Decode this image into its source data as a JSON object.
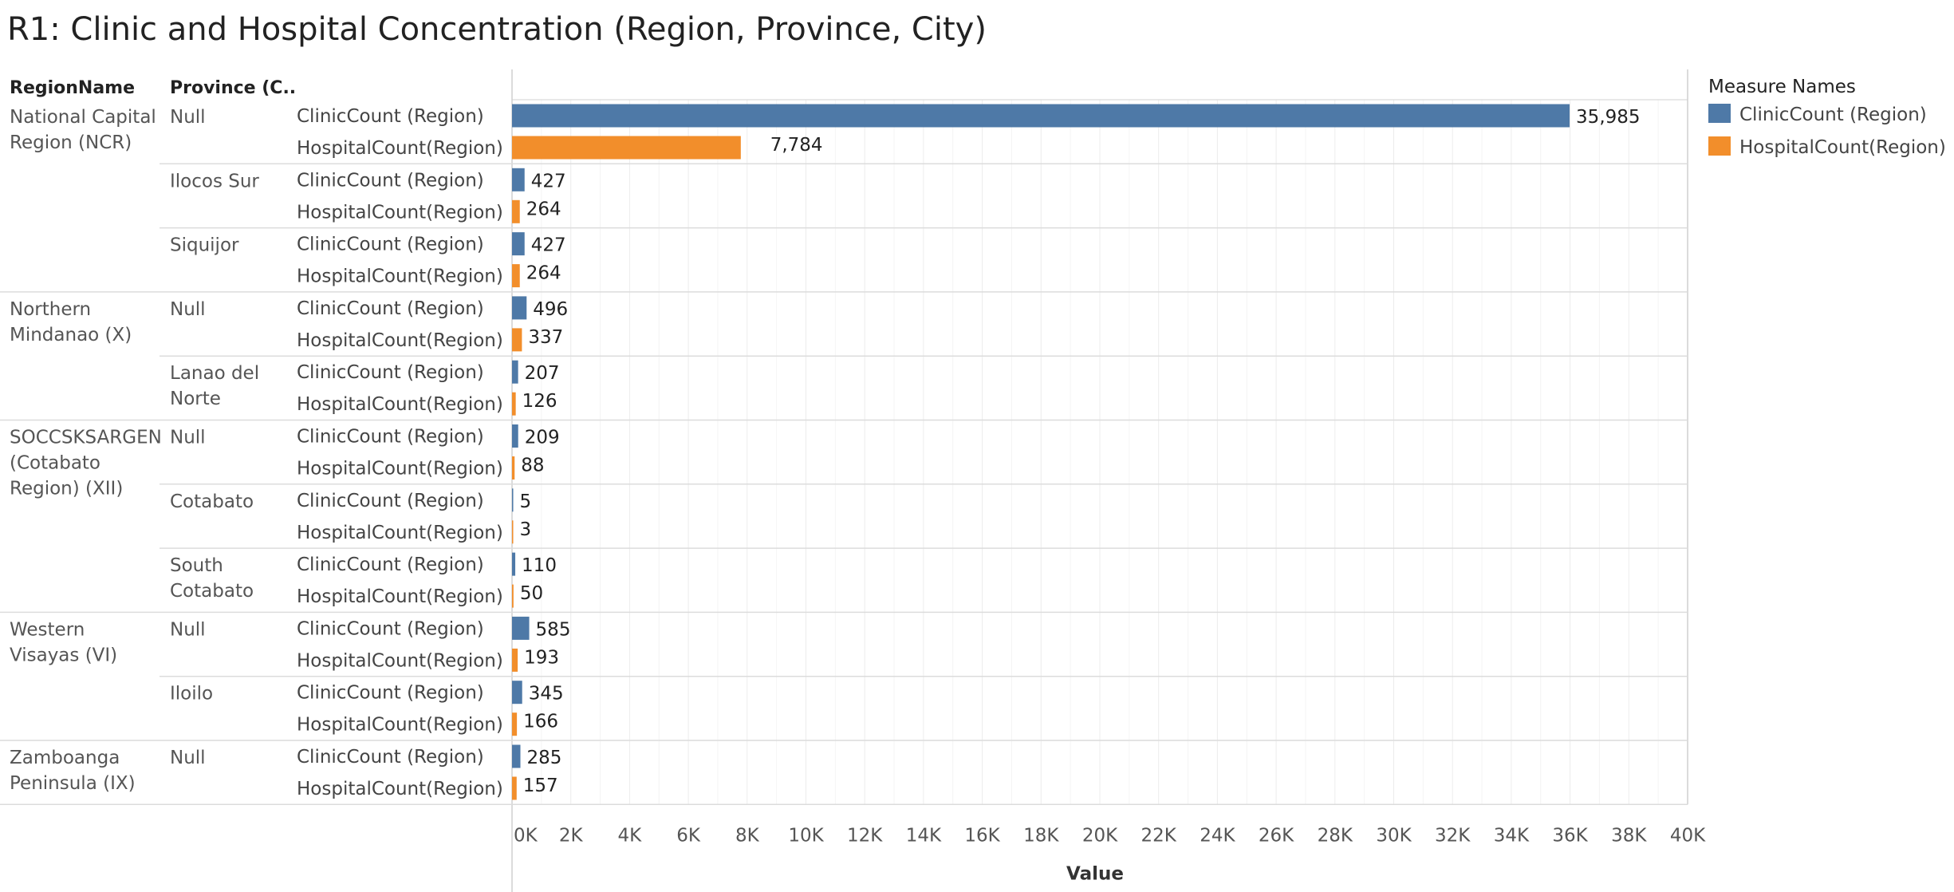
{
  "title": "R1: Clinic and Hospital Concentration (Region, Province, City)",
  "colors": {
    "clinic": "#4e79a7",
    "hospital": "#f28e2b"
  },
  "chart_data": {
    "type": "bar",
    "orientation": "horizontal",
    "row_headers": [
      "RegionName",
      "Province (C.."
    ],
    "measures": [
      "ClinicCount (Region)",
      "HospitalCount(Region)"
    ],
    "groups": [
      {
        "region": [
          "National Capital",
          "Region (NCR)"
        ],
        "provinces": [
          {
            "name": [
              "Null"
            ],
            "values": [
              35985,
              7784
            ],
            "labels": [
              "35,985",
              "7,784"
            ]
          },
          {
            "name": [
              "Ilocos Sur"
            ],
            "values": [
              427,
              264
            ],
            "labels": [
              "427",
              "264"
            ]
          },
          {
            "name": [
              "Siquijor"
            ],
            "values": [
              427,
              264
            ],
            "labels": [
              "427",
              "264"
            ]
          }
        ]
      },
      {
        "region": [
          "Northern",
          "Mindanao (X)"
        ],
        "provinces": [
          {
            "name": [
              "Null"
            ],
            "values": [
              496,
              337
            ],
            "labels": [
              "496",
              "337"
            ]
          },
          {
            "name": [
              "Lanao del",
              "Norte"
            ],
            "values": [
              207,
              126
            ],
            "labels": [
              "207",
              "126"
            ]
          }
        ]
      },
      {
        "region": [
          "SOCCSKSARGEN",
          "(Cotabato",
          "Region) (XII)"
        ],
        "provinces": [
          {
            "name": [
              "Null"
            ],
            "values": [
              209,
              88
            ],
            "labels": [
              "209",
              "88"
            ]
          },
          {
            "name": [
              "Cotabato"
            ],
            "values": [
              5,
              3
            ],
            "labels": [
              "5",
              "3"
            ]
          },
          {
            "name": [
              "South",
              "Cotabato"
            ],
            "values": [
              110,
              50
            ],
            "labels": [
              "110",
              "50"
            ]
          }
        ]
      },
      {
        "region": [
          "Western",
          "Visayas (VI)"
        ],
        "provinces": [
          {
            "name": [
              "Null"
            ],
            "values": [
              585,
              193
            ],
            "labels": [
              "585",
              "193"
            ]
          },
          {
            "name": [
              "Iloilo"
            ],
            "values": [
              345,
              166
            ],
            "labels": [
              "345",
              "166"
            ]
          }
        ]
      },
      {
        "region": [
          "Zamboanga",
          "Peninsula (IX)"
        ],
        "provinces": [
          {
            "name": [
              "Null"
            ],
            "values": [
              285,
              157
            ],
            "labels": [
              "285",
              "157"
            ]
          }
        ]
      }
    ],
    "x_ticks": [
      0,
      2000,
      4000,
      6000,
      8000,
      10000,
      12000,
      14000,
      16000,
      18000,
      20000,
      22000,
      24000,
      26000,
      28000,
      30000,
      32000,
      34000,
      36000,
      38000,
      40000
    ],
    "x_tick_labels": [
      "0K",
      "2K",
      "4K",
      "6K",
      "8K",
      "10K",
      "12K",
      "14K",
      "16K",
      "18K",
      "20K",
      "22K",
      "24K",
      "26K",
      "28K",
      "30K",
      "32K",
      "34K",
      "36K",
      "38K",
      "40K"
    ],
    "xlabel": "Value",
    "xlim": [
      0,
      40000
    ],
    "grid": true,
    "legend": {
      "title": "Measure Names",
      "position": "right",
      "entries": [
        "ClinicCount (Region)",
        "HospitalCount(Region)"
      ]
    }
  }
}
